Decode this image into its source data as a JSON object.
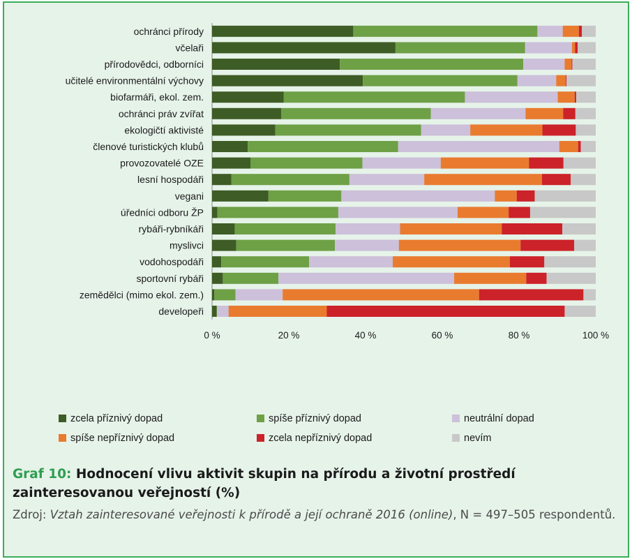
{
  "chart_data": {
    "type": "bar",
    "orientation": "horizontal",
    "stacked": true,
    "percent": true,
    "xlim": [
      0,
      100
    ],
    "x_ticks": [
      "0 %",
      "20 %",
      "40 %",
      "60 %",
      "80 %",
      "100 %"
    ],
    "categories": [
      "ochránci přírody",
      "včelaři",
      "přírodovědci, odborníci",
      "učitelé environmentální výchovy",
      "biofarmáři, ekol. zem.",
      "ochránci práv zvířat",
      "ekologičtí aktivisté",
      "členové turistických klubů",
      "provozovatelé OZE",
      "lesní hospodáři",
      "vegani",
      "úředníci odboru ŽP",
      "rybáři-rybníkáři",
      "myslivci",
      "vodohospodáři",
      "sportovní rybáři",
      "zemědělci (mimo ekol. zem.)",
      "developeři"
    ],
    "series": [
      {
        "name": "zcela příznivý dopad",
        "color": "#3e5c25",
        "values": [
          36.8,
          47.8,
          33.3,
          39.3,
          18.7,
          18.0,
          16.5,
          9.3,
          10.0,
          5.0,
          14.7,
          1.4,
          5.9,
          6.3,
          2.4,
          2.8,
          0.6,
          1.2
        ]
      },
      {
        "name": "spíše příznivý dopad",
        "color": "#6ea046",
        "values": [
          48.0,
          33.8,
          47.8,
          40.3,
          47.2,
          39.0,
          38.0,
          39.2,
          29.2,
          30.8,
          19.0,
          31.5,
          26.3,
          25.7,
          22.9,
          14.5,
          5.5,
          0.1
        ]
      },
      {
        "name": "neutrální dopad",
        "color": "#ccc0da",
        "values": [
          6.6,
          12.2,
          10.8,
          10.1,
          24.2,
          24.7,
          12.8,
          42.0,
          20.4,
          19.5,
          40.0,
          31.1,
          16.8,
          16.7,
          21.8,
          45.8,
          12.3,
          3.0
        ]
      },
      {
        "name": "spíše nepříznivý dopad",
        "color": "#e97b2f",
        "values": [
          4.2,
          0.8,
          1.8,
          2.5,
          4.4,
          9.8,
          18.8,
          4.9,
          23.0,
          30.7,
          5.7,
          13.3,
          26.5,
          31.7,
          30.5,
          18.8,
          51.2,
          25.6
        ]
      },
      {
        "name": "zcela nepříznivý dopad",
        "color": "#cc2229",
        "values": [
          0.8,
          0.7,
          0.2,
          0.2,
          0.4,
          3.2,
          8.7,
          0.7,
          9.0,
          7.5,
          4.7,
          5.6,
          15.8,
          14.0,
          9.0,
          5.3,
          27.2,
          62.0
        ]
      },
      {
        "name": "nevím",
        "color": "#c8c8c8",
        "values": [
          3.6,
          4.7,
          6.1,
          7.6,
          5.1,
          5.3,
          5.2,
          3.9,
          8.4,
          6.5,
          15.9,
          17.1,
          8.7,
          5.6,
          13.4,
          12.8,
          3.2,
          8.1
        ]
      }
    ]
  },
  "caption": {
    "prefix": "Graf 10:",
    "title": "Hodnocení vlivu aktivit skupin na přírodu a životní prostředí zainteresovanou veřejností (%)",
    "source_label": "Zdroj:",
    "source_title": "Vztah zainteresované veřejnosti k přírodě a její ochraně 2016 (online)",
    "source_rest": ", N = 497–505 respondentů."
  }
}
